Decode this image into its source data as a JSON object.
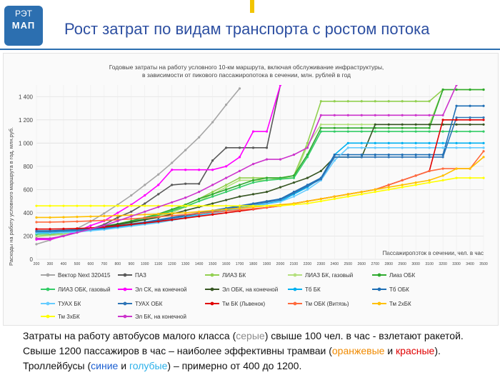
{
  "header": {
    "logo_line1": "РЭТ",
    "logo_line2": "МАП",
    "title": "Рост затрат по видам транспорта с ростом потока"
  },
  "chart_data": {
    "type": "line",
    "title_line1": "Годовые затраты на работу условного 10-км маршрута, включая обслуживание инфраструктуры,",
    "title_line2": "в зависимости от пикового пассажиропотока в сечении, млн. рублей в год",
    "ylabel": "Расходы на работу условного маршрута в год, млн.руб.",
    "xlabel": "Пассажиропоток в сечении, чел. в час",
    "ylim": [
      0,
      1500
    ],
    "yticks": [
      "0",
      "200",
      "400",
      "600",
      "800",
      "1 000",
      "1 200",
      "1 400"
    ],
    "grid": true,
    "legend": "bottom",
    "categories": [
      "200",
      "300",
      "400",
      "500",
      "600",
      "700",
      "800",
      "900",
      "1000",
      "1100",
      "1200",
      "1300",
      "1400",
      "1500",
      "1600",
      "1700",
      "1800",
      "1900",
      "2000",
      "2100",
      "2200",
      "2300",
      "2400",
      "2500",
      "2600",
      "2700",
      "2800",
      "2900",
      "3000",
      "3100",
      "3200",
      "3300",
      "3400",
      "3500"
    ],
    "series": [
      {
        "name": "Вектор Next 320415",
        "color": "#a6a6a6",
        "dashed": false,
        "values": [
          130,
          165,
          210,
          265,
          325,
          395,
          470,
          550,
          640,
          730,
          830,
          940,
          1050,
          1180,
          1330,
          1470,
          null,
          null,
          null,
          null,
          null,
          null,
          null,
          null,
          null,
          null,
          null,
          null,
          null,
          null,
          null,
          null,
          null,
          null
        ]
      },
      {
        "name": "ПАЗ",
        "color": "#595959",
        "dashed": false,
        "values": [
          175,
          175,
          200,
          230,
          260,
          300,
          360,
          410,
          480,
          560,
          640,
          650,
          650,
          850,
          960,
          960,
          960,
          960,
          1500,
          null,
          null,
          null,
          null,
          null,
          null,
          null,
          null,
          null,
          null,
          null,
          null,
          null,
          null,
          null
        ]
      },
      {
        "name": "ЛИАЗ БК",
        "color": "#92d050",
        "dashed": false,
        "values": [
          200,
          210,
          220,
          240,
          260,
          280,
          300,
          320,
          350,
          380,
          420,
          470,
          520,
          580,
          640,
          700,
          700,
          700,
          700,
          720,
          1000,
          1360,
          1360,
          1360,
          1360,
          1360,
          1360,
          1360,
          1360,
          1360,
          1460,
          1460,
          1460,
          1460
        ]
      },
      {
        "name": "ЛИАЗ БК, газовый",
        "color": "#b4e07e",
        "dashed": false,
        "values": [
          195,
          205,
          215,
          235,
          255,
          275,
          295,
          315,
          340,
          370,
          400,
          450,
          500,
          560,
          620,
          680,
          680,
          680,
          700,
          700,
          980,
          1160,
          1160,
          1160,
          1160,
          1160,
          1160,
          1160,
          1160,
          1160,
          1460,
          1460,
          1460,
          1460
        ]
      },
      {
        "name": "Лиаз ОБК",
        "color": "#2eaa2e",
        "dashed": false,
        "values": [
          220,
          225,
          235,
          250,
          265,
          285,
          305,
          330,
          360,
          390,
          430,
          470,
          520,
          560,
          600,
          640,
          680,
          700,
          700,
          720,
          900,
          1130,
          1130,
          1130,
          1130,
          1130,
          1130,
          1130,
          1130,
          1130,
          1460,
          1460,
          1460,
          1460
        ]
      },
      {
        "name": "ЛИАЗ ОБК, газовый",
        "color": "#33cc66",
        "dashed": false,
        "values": [
          215,
          220,
          230,
          245,
          260,
          280,
          300,
          320,
          350,
          380,
          415,
          455,
          500,
          540,
          580,
          620,
          660,
          680,
          690,
          700,
          880,
          1100,
          1100,
          1100,
          1100,
          1100,
          1100,
          1100,
          1100,
          1100,
          1100,
          1100,
          1100,
          1100
        ]
      },
      {
        "name": "Эл СК, на конечной",
        "color": "#ff00ff",
        "dashed": false,
        "values": [
          170,
          170,
          200,
          240,
          290,
          330,
          400,
          470,
          550,
          640,
          770,
          770,
          770,
          770,
          800,
          880,
          1100,
          1100,
          1500,
          null,
          null,
          null,
          null,
          null,
          null,
          null,
          null,
          null,
          null,
          null,
          null,
          null,
          null,
          null
        ]
      },
      {
        "name": "Эл ОБК, на конечной",
        "color": "#375623",
        "dashed": false,
        "values": [
          240,
          240,
          245,
          255,
          265,
          280,
          300,
          320,
          340,
          360,
          390,
          420,
          450,
          480,
          510,
          540,
          560,
          580,
          620,
          660,
          700,
          760,
          880,
          880,
          880,
          1160,
          1160,
          1160,
          1160,
          1160,
          1160,
          1160,
          1160,
          1160
        ]
      },
      {
        "name": "Тб БК",
        "color": "#00b0f0",
        "dashed": false,
        "values": [
          230,
          230,
          235,
          240,
          250,
          260,
          275,
          290,
          305,
          320,
          340,
          360,
          380,
          400,
          420,
          440,
          460,
          480,
          500,
          560,
          620,
          700,
          900,
          1000,
          1000,
          1000,
          1000,
          1000,
          1000,
          1000,
          1000,
          1000,
          1000,
          1000
        ]
      },
      {
        "name": "Тб ОБК",
        "color": "#1f6fb5",
        "dashed": false,
        "values": [
          245,
          245,
          250,
          255,
          265,
          275,
          290,
          305,
          320,
          340,
          360,
          380,
          400,
          420,
          440,
          460,
          480,
          500,
          520,
          580,
          640,
          700,
          900,
          900,
          900,
          900,
          900,
          900,
          900,
          900,
          900,
          1320,
          1320,
          1320
        ]
      },
      {
        "name": "ТУАХ БК",
        "color": "#66ccff",
        "dashed": false,
        "values": [
          225,
          225,
          230,
          235,
          245,
          255,
          270,
          285,
          300,
          315,
          335,
          355,
          375,
          395,
          415,
          435,
          455,
          475,
          495,
          540,
          600,
          680,
          850,
          960,
          960,
          960,
          960,
          960,
          960,
          960,
          960,
          960,
          960,
          960
        ]
      },
      {
        "name": "ТУАХ ОБК",
        "color": "#2e75b6",
        "dashed": false,
        "values": [
          240,
          240,
          245,
          250,
          258,
          268,
          282,
          298,
          314,
          332,
          352,
          372,
          392,
          412,
          432,
          452,
          472,
          492,
          512,
          570,
          630,
          690,
          880,
          880,
          880,
          880,
          880,
          880,
          880,
          880,
          880,
          1220,
          1220,
          1220
        ]
      },
      {
        "name": "Тм БК (Львенок)",
        "color": "#e00000",
        "dashed": false,
        "values": [
          260,
          260,
          262,
          265,
          270,
          278,
          288,
          300,
          312,
          325,
          340,
          355,
          370,
          385,
          400,
          415,
          430,
          445,
          460,
          480,
          500,
          520,
          540,
          560,
          580,
          600,
          640,
          680,
          720,
          760,
          1200,
          1200,
          1200,
          1200
        ]
      },
      {
        "name": "Тм ОБК (Витязь)",
        "color": "#ff6a3d",
        "dashed": false,
        "values": [
          320,
          320,
          322,
          325,
          330,
          335,
          340,
          348,
          356,
          365,
          375,
          385,
          395,
          405,
          415,
          425,
          435,
          445,
          460,
          480,
          500,
          520,
          540,
          560,
          580,
          600,
          640,
          680,
          720,
          760,
          780,
          780,
          780,
          930
        ]
      },
      {
        "name": "Тм 2хБК",
        "color": "#ffc000",
        "dashed": false,
        "values": [
          360,
          360,
          362,
          365,
          368,
          372,
          376,
          380,
          385,
          390,
          395,
          400,
          410,
          420,
          430,
          440,
          450,
          460,
          470,
          480,
          500,
          520,
          540,
          560,
          580,
          600,
          620,
          640,
          660,
          680,
          720,
          780,
          780,
          880
        ]
      },
      {
        "name": "Тм 3хБК",
        "color": "#ffff00",
        "dashed": false,
        "values": [
          460,
          460,
          460,
          460,
          460,
          460,
          460,
          460,
          460,
          460,
          460,
          460,
          460,
          460,
          460,
          460,
          460,
          460,
          460,
          470,
          480,
          500,
          520,
          540,
          560,
          580,
          600,
          620,
          640,
          660,
          680,
          700,
          700,
          700
        ]
      },
      {
        "name": "Эл БК, на конечной",
        "color": "#cc33cc",
        "dashed": false,
        "values": [
          180,
          180,
          200,
          230,
          260,
          290,
          330,
          370,
          410,
          450,
          490,
          530,
          580,
          640,
          700,
          760,
          820,
          860,
          860,
          900,
          960,
          1240,
          1240,
          1240,
          1240,
          1240,
          1240,
          1240,
          1240,
          1240,
          1240,
          1500,
          null,
          null
        ]
      }
    ]
  },
  "caption": {
    "p1": "Затраты на работу автобусов малого класса (",
    "w_gray": "серые",
    "p2": ") свыше 100 чел. в час - взлетают ракетой. Свыше 1200 пассажиров в час – наиболее эффективны трамваи (",
    "w_orange": "оранжевые",
    "p3": " и ",
    "w_red": "красные",
    "p4": "). Троллейбусы (",
    "w_blue": "синие",
    "p5": " и ",
    "w_lblue": "голубые",
    "p6": ") – примерно от 400 до 1200."
  }
}
